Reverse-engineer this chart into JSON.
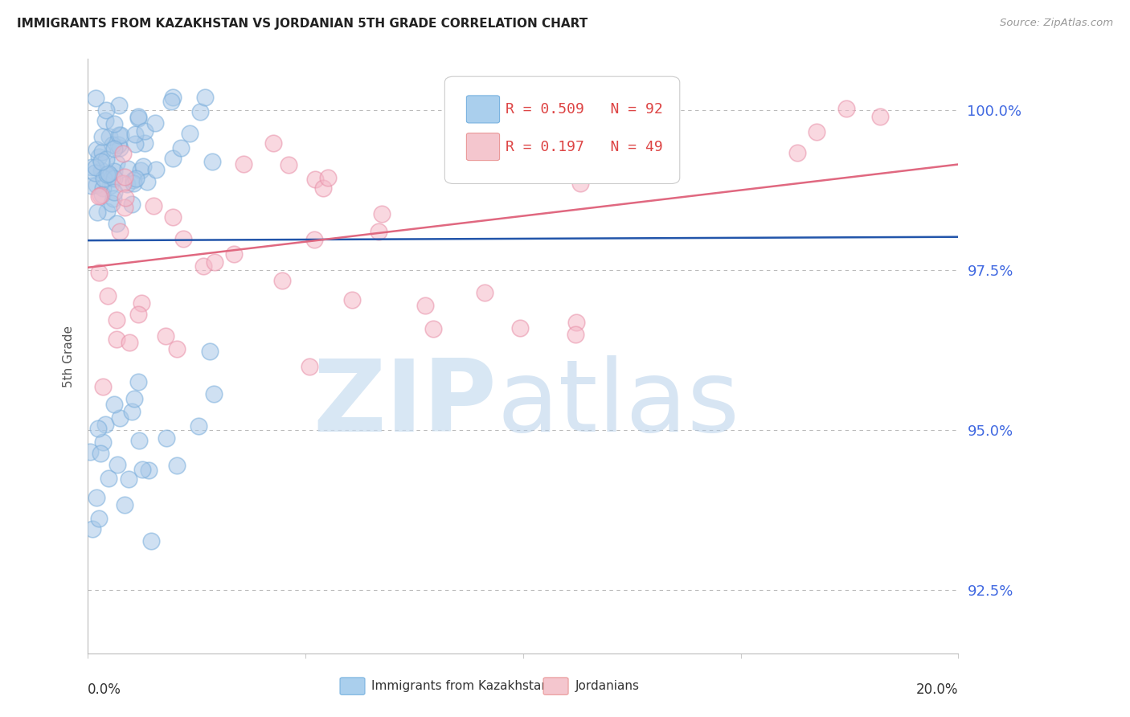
{
  "title": "IMMIGRANTS FROM KAZAKHSTAN VS JORDANIAN 5TH GRADE CORRELATION CHART",
  "source_text": "Source: ZipAtlas.com",
  "ylabel": "5th Grade",
  "xlim": [
    0.0,
    20.0
  ],
  "ylim": [
    91.5,
    100.8
  ],
  "ytick_vals": [
    92.5,
    95.0,
    97.5,
    100.0
  ],
  "ytick_labels": [
    "92.5%",
    "95.0%",
    "97.5%",
    "100.0%"
  ],
  "legend_entries": [
    {
      "label": "Immigrants from Kazakhstan",
      "R": "0.509",
      "N": "92",
      "color_face": "#aacfed",
      "color_edge": "#7ab3e0"
    },
    {
      "label": "Jordanians",
      "R": "0.197",
      "N": "49",
      "color_face": "#f4c6ce",
      "color_edge": "#ea9999"
    }
  ],
  "blue_line_color": "#2255aa",
  "pink_line_color": "#e06880",
  "scatter_blue_face": "#a8c8e8",
  "scatter_blue_edge": "#7aaedc",
  "scatter_pink_face": "#f5b8c8",
  "scatter_pink_edge": "#e890a8",
  "watermark_zip_color": "#c8ddf0",
  "watermark_atlas_color": "#b0cce8",
  "background_color": "#ffffff",
  "grid_color": "#bbbbbb",
  "title_color": "#222222",
  "axis_label_color": "#555555",
  "tick_label_color": "#4169e1",
  "source_color": "#999999",
  "legend_text_color": "#dd4444",
  "legend_N_color": "#dd4444"
}
